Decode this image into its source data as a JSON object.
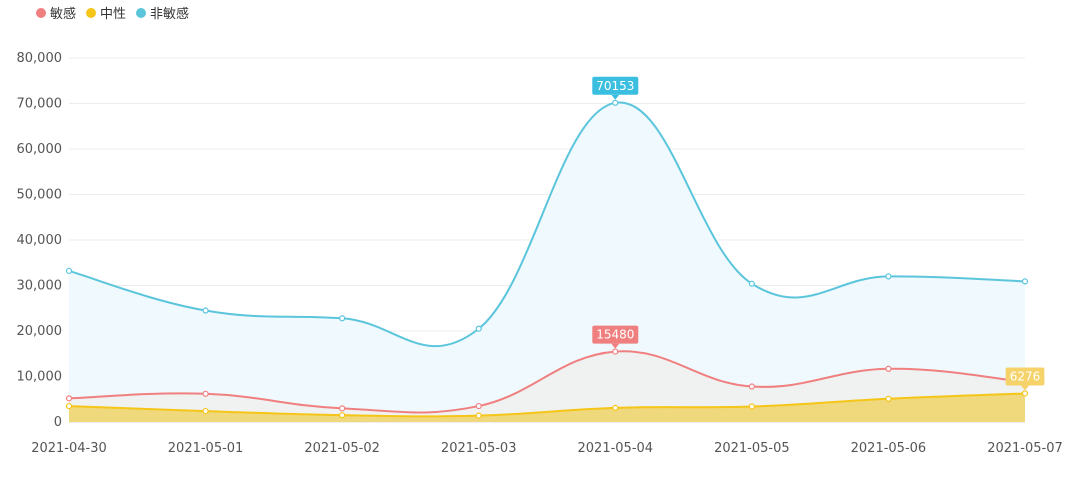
{
  "legend": [
    {
      "name": "敏感",
      "color": "#f08080"
    },
    {
      "name": "中性",
      "color": "#f5c518"
    },
    {
      "name": "非敏感",
      "color": "#5bc5dc"
    }
  ],
  "chart_data": {
    "type": "area",
    "categories": [
      "2021-04-30",
      "2021-05-01",
      "2021-05-02",
      "2021-05-03",
      "2021-05-04",
      "2021-05-05",
      "2021-05-06",
      "2021-05-07"
    ],
    "ylim": [
      0,
      80000
    ],
    "yticks": [
      "0",
      "10,000",
      "20,000",
      "30,000",
      "40,000",
      "50,000",
      "60,000",
      "70,000",
      "80,000"
    ],
    "grid": true,
    "legend_position": "top-left",
    "series": [
      {
        "name": "非敏感",
        "color": "#5bc5dc",
        "fill": "#eef8fd",
        "values": [
          33200,
          24500,
          22800,
          20500,
          70153,
          30400,
          32000,
          30900
        ],
        "label": {
          "index": 4,
          "text": "70153",
          "bg": "#3bbfe0"
        }
      },
      {
        "name": "敏感",
        "color": "#f08080",
        "fill": "#efefef",
        "values": [
          5200,
          6200,
          3000,
          3500,
          15480,
          7800,
          11700,
          8800
        ],
        "label": {
          "index": 4,
          "text": "15480",
          "bg": "#f08080"
        }
      },
      {
        "name": "中性",
        "color": "#f5c518",
        "fill": "#f0d570",
        "values": [
          3500,
          2400,
          1500,
          1400,
          3100,
          3400,
          5100,
          6276
        ],
        "label": {
          "index": 7,
          "text": "6276",
          "bg": "#f5d36a"
        }
      }
    ]
  }
}
